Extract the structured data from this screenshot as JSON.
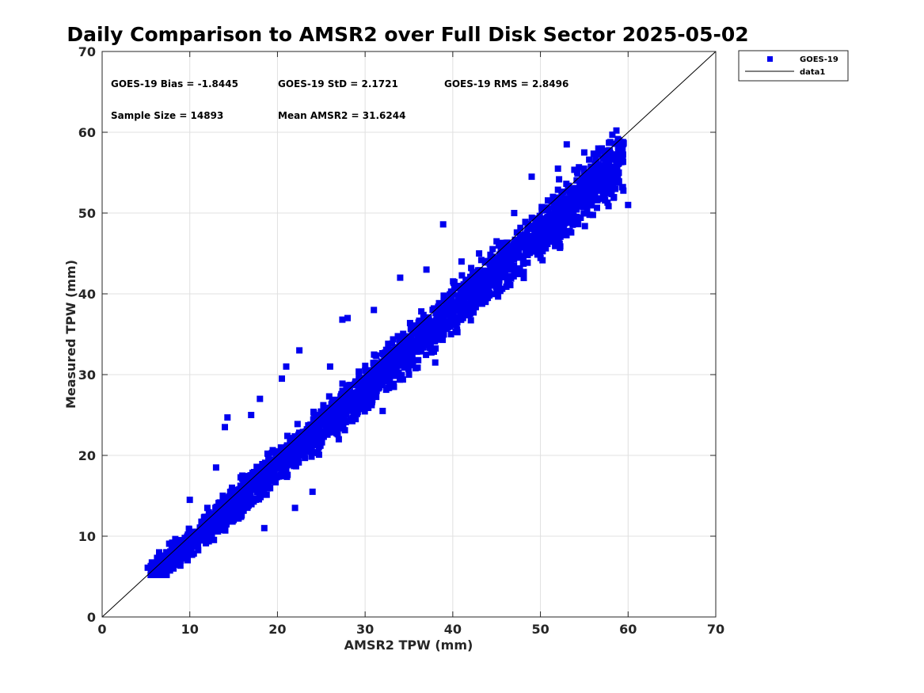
{
  "chart_data": {
    "type": "scatter",
    "title": "Daily Comparison to AMSR2 over Full Disk Sector 2025-05-02",
    "xlabel": "AMSR2 TPW (mm)",
    "ylabel": "Measured TPW (mm)",
    "xlim": [
      0,
      70
    ],
    "ylim": [
      0,
      70
    ],
    "xticks": [
      "0",
      "10",
      "20",
      "30",
      "40",
      "50",
      "60",
      "70"
    ],
    "yticks": [
      "0",
      "10",
      "20",
      "30",
      "40",
      "50",
      "60",
      "70"
    ],
    "grid": true,
    "legend_position": "top-right-outside",
    "colors": {
      "points": "#0000ee",
      "line": "#000000",
      "grid": "#e0e0e0",
      "axis": "#262626"
    },
    "annotations": {
      "bias": "GOES-19 Bias = -1.8445",
      "std": "GOES-19 StD = 2.1721",
      "rms": "GOES-19 RMS = 2.8496",
      "sample": "Sample Size = 14893",
      "mean": "Mean AMSR2 = 31.6244"
    },
    "series": [
      {
        "name": "GOES-19",
        "kind": "scatter",
        "marker": "square",
        "sample_points": [
          [
            5.2,
            6.1
          ],
          [
            6.0,
            5.5
          ],
          [
            6.5,
            8.0
          ],
          [
            8.0,
            6.5
          ],
          [
            9.0,
            9.5
          ],
          [
            10.0,
            14.5
          ],
          [
            11.0,
            10.0
          ],
          [
            12.0,
            13.5
          ],
          [
            13.0,
            18.5
          ],
          [
            14.0,
            23.5
          ],
          [
            14.3,
            24.7
          ],
          [
            15.0,
            12.0
          ],
          [
            16.0,
            17.5
          ],
          [
            17.0,
            25.0
          ],
          [
            18.0,
            27.0
          ],
          [
            18.5,
            11.0
          ],
          [
            20.0,
            20.5
          ],
          [
            20.5,
            29.5
          ],
          [
            21.0,
            31.0
          ],
          [
            22.0,
            13.5
          ],
          [
            22.5,
            33.0
          ],
          [
            23.0,
            20.0
          ],
          [
            24.0,
            15.5
          ],
          [
            25.0,
            25.0
          ],
          [
            26.0,
            31.0
          ],
          [
            27.0,
            22.0
          ],
          [
            27.4,
            36.8
          ],
          [
            28.0,
            37.0
          ],
          [
            29.0,
            27.0
          ],
          [
            30.0,
            30.5
          ],
          [
            31.0,
            38.0
          ],
          [
            32.0,
            25.5
          ],
          [
            33.0,
            33.0
          ],
          [
            34.0,
            42.0
          ],
          [
            35.0,
            30.0
          ],
          [
            36.0,
            34.0
          ],
          [
            37.0,
            43.0
          ],
          [
            38.0,
            31.5
          ],
          [
            38.9,
            48.6
          ],
          [
            40.0,
            40.0
          ],
          [
            41.0,
            44.0
          ],
          [
            42.0,
            38.0
          ],
          [
            43.0,
            45.0
          ],
          [
            44.0,
            39.5
          ],
          [
            45.0,
            46.5
          ],
          [
            46.0,
            43.0
          ],
          [
            47.0,
            50.0
          ],
          [
            48.0,
            42.5
          ],
          [
            49.0,
            54.5
          ],
          [
            50.0,
            49.0
          ],
          [
            51.0,
            46.5
          ],
          [
            52.0,
            55.5
          ],
          [
            53.0,
            58.5
          ],
          [
            54.0,
            52.0
          ],
          [
            55.0,
            57.5
          ],
          [
            56.0,
            54.5
          ],
          [
            57.0,
            58.0
          ],
          [
            58.0,
            57.0
          ],
          [
            59.0,
            59.0
          ],
          [
            60.0,
            51.0
          ]
        ]
      },
      {
        "name": "data1",
        "kind": "line",
        "x": [
          0,
          70
        ],
        "y": [
          0,
          70
        ]
      }
    ]
  }
}
